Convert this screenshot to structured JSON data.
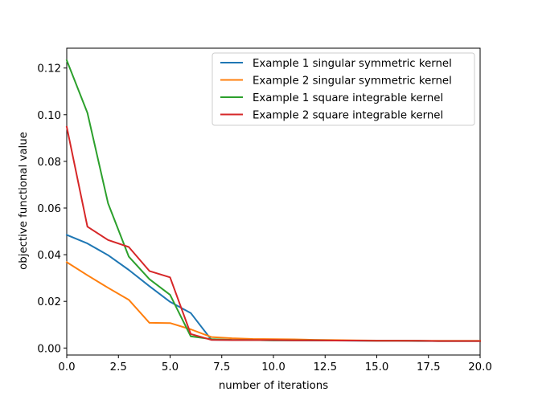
{
  "chart_data": {
    "type": "line",
    "title": "",
    "xlabel": "number of iterations",
    "ylabel": "objective functional value",
    "xlim": [
      0,
      20
    ],
    "ylim": [
      -0.003,
      0.1285
    ],
    "x_ticks": [
      0,
      2.5,
      5,
      7.5,
      10,
      12.5,
      15,
      17.5,
      20
    ],
    "x_tick_labels": [
      "0.0",
      "2.5",
      "5.0",
      "7.5",
      "10.0",
      "12.5",
      "15.0",
      "17.5",
      "20.0"
    ],
    "y_ticks": [
      0,
      0.02,
      0.04,
      0.06,
      0.08,
      0.1,
      0.12
    ],
    "y_tick_labels": [
      "0.00",
      "0.02",
      "0.04",
      "0.06",
      "0.08",
      "0.10",
      "0.12"
    ],
    "grid": false,
    "legend_position": "top-right",
    "x": [
      0,
      1,
      2,
      3,
      4,
      5,
      6,
      7,
      8,
      9,
      10,
      11,
      12,
      13,
      14,
      15,
      16,
      17,
      18,
      19,
      20
    ],
    "series": [
      {
        "name": "Example 1 singular symmetric kernel",
        "color": "#1f77b4",
        "values": [
          0.0485,
          0.0448,
          0.0398,
          0.0335,
          0.0265,
          0.0198,
          0.015,
          0.0035,
          0.0034,
          0.0034,
          0.0033,
          0.0033,
          0.0032,
          0.0032,
          0.0031,
          0.0031,
          0.0031,
          0.003,
          0.003,
          0.003,
          0.003
        ]
      },
      {
        "name": "Example 2 singular symmetric kernel",
        "color": "#ff7f0e",
        "values": [
          0.0368,
          0.0312,
          0.0258,
          0.0207,
          0.0108,
          0.0107,
          0.008,
          0.0047,
          0.0042,
          0.0039,
          0.0038,
          0.0037,
          0.0035,
          0.0034,
          0.0033,
          0.0032,
          0.0032,
          0.0031,
          0.0031,
          0.0031,
          0.0031
        ]
      },
      {
        "name": "Example 1 square integrable kernel",
        "color": "#2ca02c",
        "values": [
          0.1233,
          0.1008,
          0.062,
          0.0392,
          0.0295,
          0.0228,
          0.005,
          0.0038,
          0.0035,
          0.0034,
          0.0033,
          0.0033,
          0.0033,
          0.0032,
          0.0032,
          0.0031,
          0.0031,
          0.0031,
          0.003,
          0.003,
          0.003
        ]
      },
      {
        "name": "Example 2 square integrable kernel",
        "color": "#d62728",
        "values": [
          0.0948,
          0.052,
          0.0463,
          0.0433,
          0.033,
          0.0303,
          0.006,
          0.0035,
          0.0034,
          0.0034,
          0.0034,
          0.0033,
          0.0033,
          0.0032,
          0.0032,
          0.0031,
          0.0031,
          0.0031,
          0.003,
          0.003,
          0.003
        ]
      }
    ]
  }
}
